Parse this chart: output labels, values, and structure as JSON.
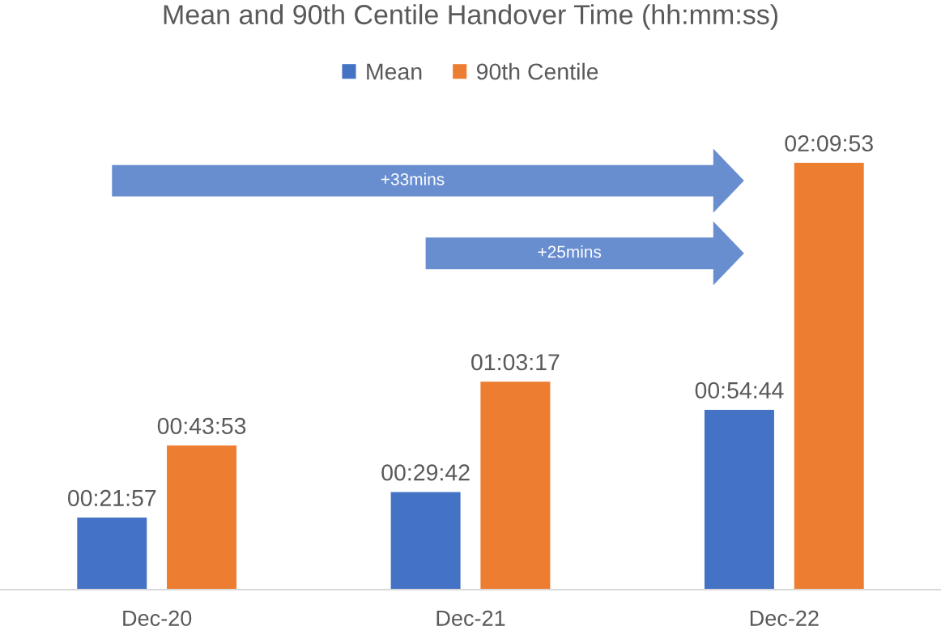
{
  "chart_data": {
    "type": "bar",
    "title": "Mean and 90th Centile Handover Time (hh:mm:ss)",
    "categories": [
      "Dec-20",
      "Dec-21",
      "Dec-22"
    ],
    "series": [
      {
        "name": "Mean",
        "color": "#4472c4",
        "values": [
          1317,
          1782,
          3284
        ],
        "value_labels": [
          "00:21:57",
          "00:29:42",
          "00:54:44"
        ]
      },
      {
        "name": "90th Centile",
        "color": "#ed7d31",
        "values": [
          2633,
          3797,
          7793
        ],
        "value_labels": [
          "00:43:53",
          "01:03:17",
          "02:09:53"
        ]
      }
    ],
    "annotations": [
      "+33mins",
      "+25mins"
    ],
    "legend": "top",
    "tick_labels": "x"
  }
}
